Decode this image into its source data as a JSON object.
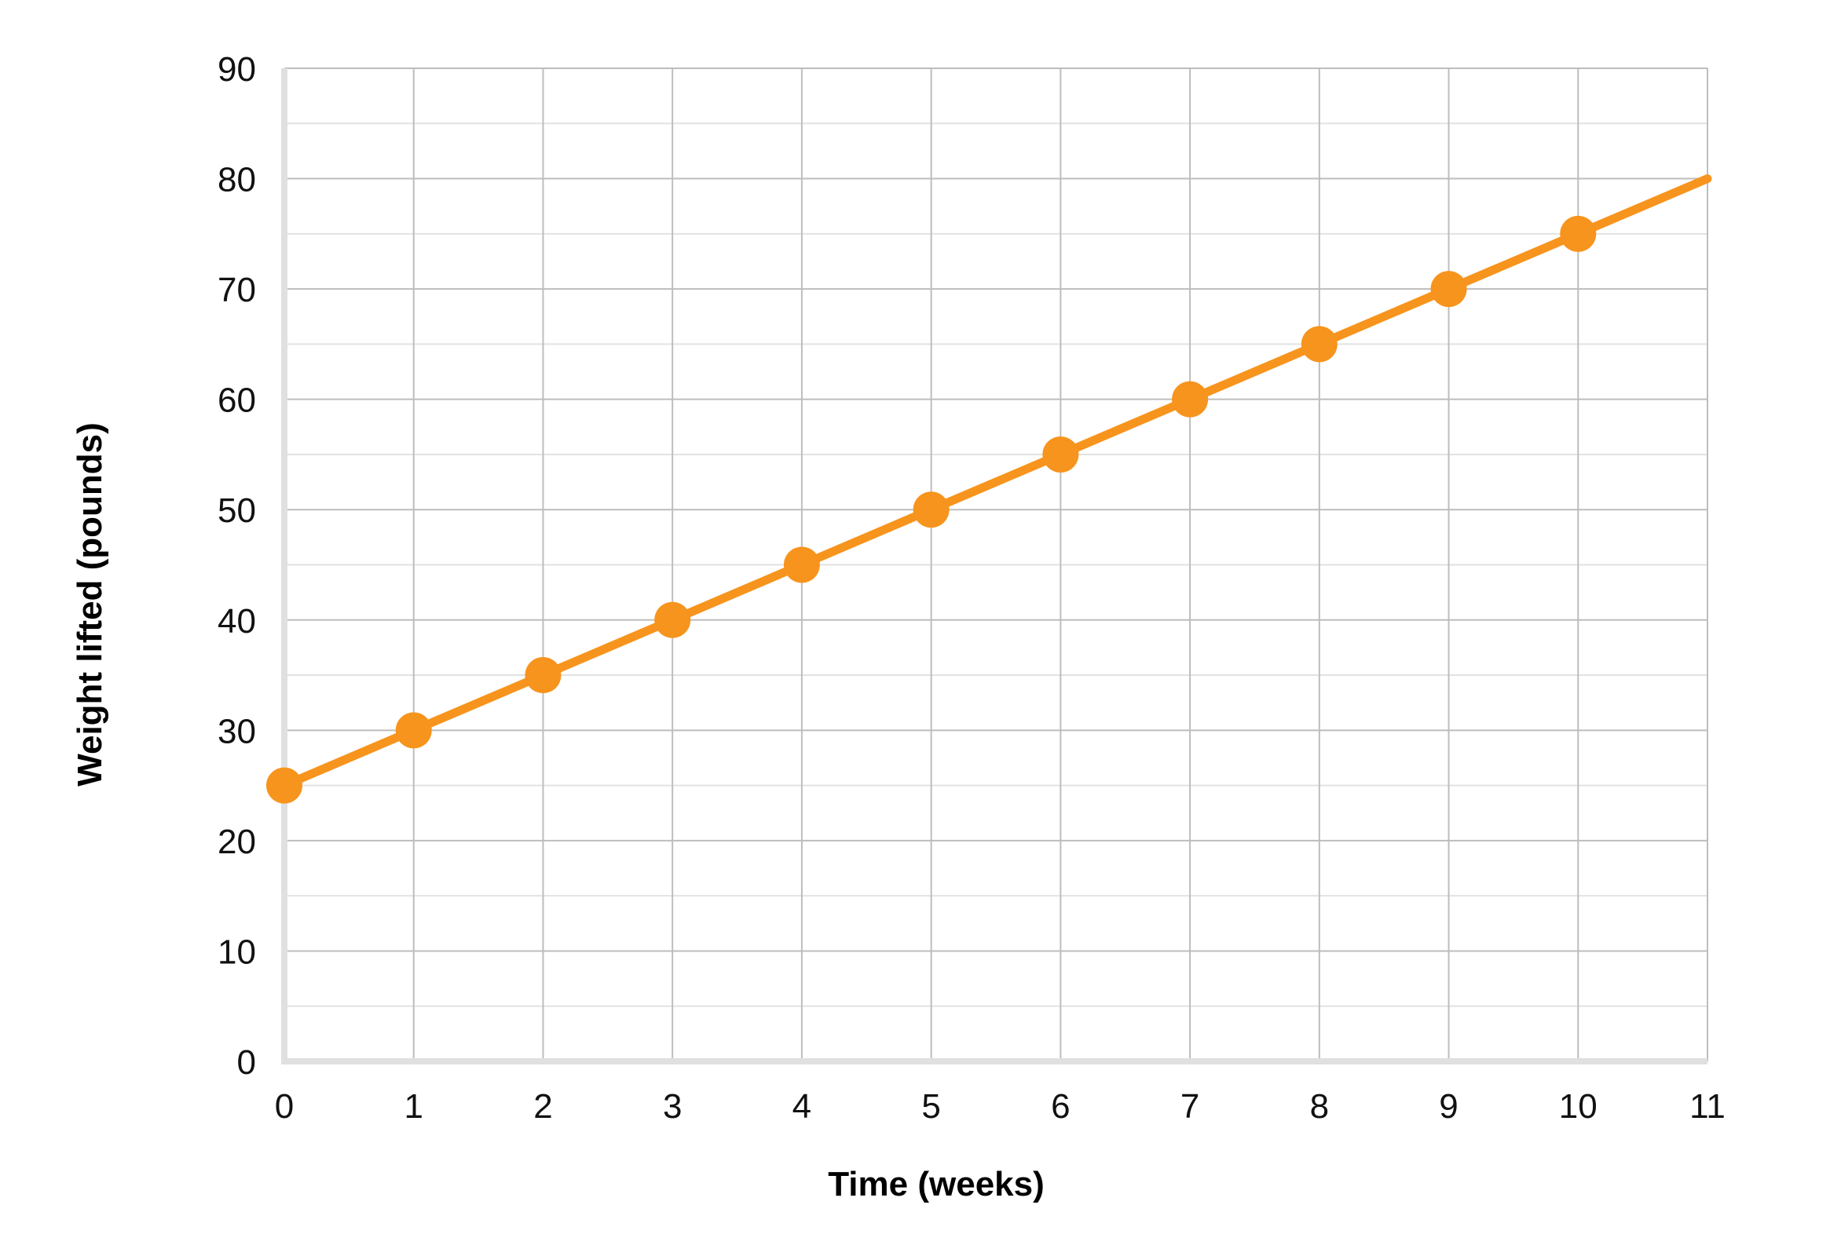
{
  "chart_data": {
    "type": "line",
    "title": "",
    "xlabel": "Time (weeks)",
    "ylabel": "Weight lifted (pounds)",
    "xlim": [
      0,
      11
    ],
    "ylim": [
      0,
      90
    ],
    "x_ticks": [
      0,
      1,
      2,
      3,
      4,
      5,
      6,
      7,
      8,
      9,
      10,
      11
    ],
    "y_ticks": [
      0,
      10,
      20,
      30,
      40,
      50,
      60,
      70,
      80,
      90
    ],
    "grid": true,
    "legend": "none",
    "series": [
      {
        "x": [
          0,
          1,
          2,
          3,
          4,
          5,
          6,
          7,
          8,
          9,
          10
        ],
        "y": [
          25,
          30,
          35,
          40,
          45,
          50,
          55,
          60,
          65,
          70,
          75
        ],
        "line_end": [
          11,
          80
        ],
        "color": "#F7941D",
        "markers": true
      }
    ],
    "colors": {
      "series": "#F7941D",
      "grid_major": "#bdbdbd",
      "grid_minor": "#e2e2e2",
      "axis": "#e0e0e0",
      "text": "#111111"
    }
  }
}
